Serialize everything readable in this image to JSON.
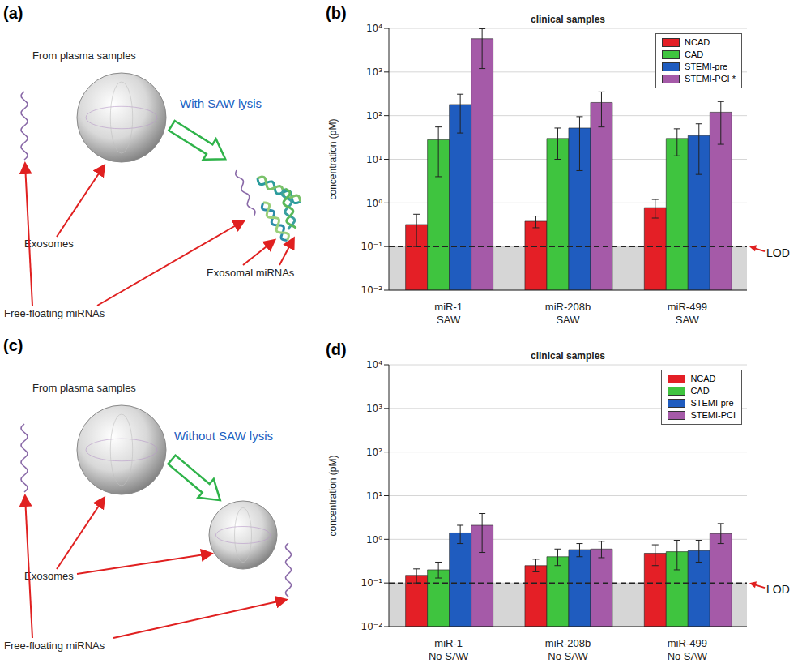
{
  "chart_data": [
    {
      "type": "bar",
      "panel": "(b)",
      "title": "clinical samples",
      "y_label": "concentration (pM)",
      "categories": [
        "miR-1 SAW",
        "miR-208b SAW",
        "miR-499 SAW"
      ],
      "series": [
        {
          "name": "NCAD",
          "color": "#e41f26",
          "values": [
            0.32,
            0.38,
            0.78
          ],
          "errors": [
            [
              0.1,
              0.55
            ],
            [
              0.27,
              0.5
            ],
            [
              0.45,
              1.2
            ]
          ]
        },
        {
          "name": "CAD",
          "color": "#3fc43f",
          "values": [
            28,
            30,
            30
          ],
          "errors": [
            [
              4,
              55
            ],
            [
              10,
              52
            ],
            [
              12,
              50
            ]
          ]
        },
        {
          "name": "STEMI-pre",
          "color": "#1f5cbf",
          "values": [
            180,
            52,
            35
          ],
          "errors": [
            [
              40,
              310
            ],
            [
              5.5,
              95
            ],
            [
              4.5,
              65
            ]
          ]
        },
        {
          "name": "STEMI-PCI *",
          "color": "#a55aa8",
          "values": [
            5800,
            200,
            120
          ],
          "errors": [
            [
              1200,
              9800
            ],
            [
              55,
              350
            ],
            [
              22,
              210
            ]
          ]
        }
      ],
      "ylim": [
        0.01,
        10000
      ],
      "yticks": [
        {
          "value": 0.01,
          "label": "10⁻²"
        },
        {
          "value": 0.1,
          "label": "10⁻¹"
        },
        {
          "value": 1,
          "label": "10⁰"
        },
        {
          "value": 10,
          "label": "10¹"
        },
        {
          "value": 100,
          "label": "10²"
        },
        {
          "value": 1000,
          "label": "10³"
        },
        {
          "value": 10000,
          "label": "10⁴"
        }
      ],
      "log": "y",
      "grid": true,
      "legend": "upper right",
      "reference_line": {
        "value": 0.1,
        "label": "LOD"
      }
    },
    {
      "type": "bar",
      "panel": "(d)",
      "title": "clinical samples",
      "y_label": "concentration (pM)",
      "categories": [
        "miR-1 No SAW",
        "miR-208b No SAW",
        "miR-499 No SAW"
      ],
      "series": [
        {
          "name": "NCAD",
          "color": "#e41f26",
          "values": [
            0.15,
            0.25,
            0.48
          ],
          "errors": [
            [
              0.1,
              0.21
            ],
            [
              0.18,
              0.35
            ],
            [
              0.25,
              0.75
            ]
          ]
        },
        {
          "name": "CAD",
          "color": "#3fc43f",
          "values": [
            0.2,
            0.4,
            0.52
          ],
          "errors": [
            [
              0.13,
              0.3
            ],
            [
              0.25,
              0.6
            ],
            [
              0.2,
              0.95
            ]
          ]
        },
        {
          "name": "STEMI-pre",
          "color": "#1f5cbf",
          "values": [
            1.4,
            0.58,
            0.55
          ],
          "errors": [
            [
              0.8,
              2.1
            ],
            [
              0.4,
              0.8
            ],
            [
              0.3,
              0.95
            ]
          ]
        },
        {
          "name": "STEMI-PCI",
          "color": "#a55aa8",
          "values": [
            2.1,
            0.6,
            1.35
          ],
          "errors": [
            [
              0.5,
              3.9
            ],
            [
              0.38,
              0.9
            ],
            [
              0.8,
              2.3
            ]
          ]
        }
      ],
      "ylim": [
        0.01,
        10000
      ],
      "yticks": [
        {
          "value": 0.01,
          "label": "10⁻²"
        },
        {
          "value": 0.1,
          "label": "10⁻¹"
        },
        {
          "value": 1,
          "label": "10⁰"
        },
        {
          "value": 10,
          "label": "10¹"
        },
        {
          "value": 100,
          "label": "10²"
        },
        {
          "value": 1000,
          "label": "10³"
        },
        {
          "value": 10000,
          "label": "10⁴"
        }
      ],
      "log": "y",
      "grid": true,
      "legend": "upper right",
      "reference_line": {
        "value": 0.1,
        "label": "LOD"
      }
    }
  ],
  "diagrams": [
    {
      "panel": "(a)",
      "source": "From plasma samples",
      "process": "With SAW lysis",
      "vesicles": "Exosomes",
      "free": "Free-floating miRNAs",
      "released": "Exosomal miRNAs"
    },
    {
      "panel": "(c)",
      "source": "From plasma samples",
      "process": "Without SAW lysis",
      "vesicles": "Exosomes",
      "free": "Free-floating miRNAs"
    }
  ]
}
